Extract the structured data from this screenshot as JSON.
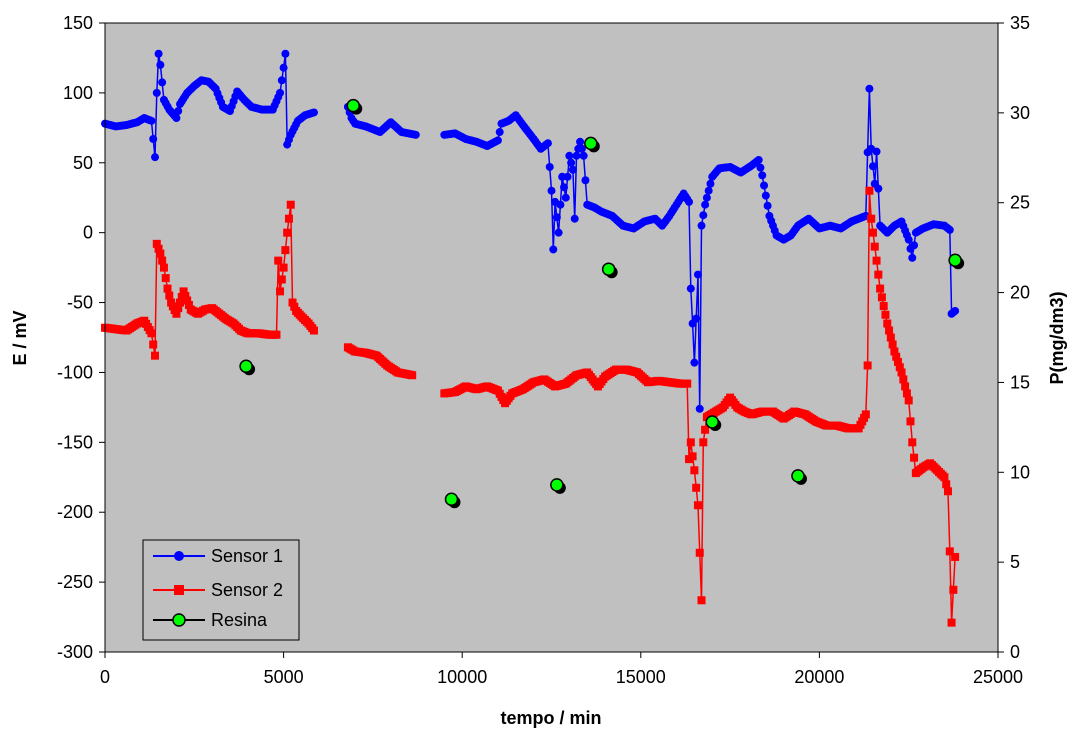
{
  "chart_data": {
    "type": "line",
    "xlabel": "tempo / min",
    "ylabel": "E / mV",
    "y2label": "P(mg/dm3)",
    "xlim": [
      0,
      25000
    ],
    "ylim": [
      -300,
      150
    ],
    "y2lim": [
      0,
      35
    ],
    "xticks": [
      0,
      5000,
      10000,
      15000,
      20000,
      25000
    ],
    "yticks": [
      -300,
      -250,
      -200,
      -150,
      -100,
      -50,
      0,
      50,
      100,
      150
    ],
    "y2ticks": [
      0,
      5,
      10,
      15,
      20,
      25,
      30,
      35
    ],
    "plot_background": "#c0c0c0",
    "grid": false,
    "legend_position": "bottom-left",
    "series": [
      {
        "name": "Sensor 1",
        "axis": "left",
        "color": "#0000ff",
        "marker": "circle",
        "segments": [
          [
            [
              0,
              78
            ],
            [
              300,
              76
            ],
            [
              600,
              77
            ],
            [
              900,
              79
            ],
            [
              1100,
              82
            ],
            [
              1300,
              80
            ],
            [
              1400,
              54
            ],
            [
              1450,
              100
            ],
            [
              1500,
              128
            ],
            [
              1550,
              120
            ],
            [
              1650,
              95
            ],
            [
              1800,
              88
            ],
            [
              2000,
              82
            ],
            [
              2100,
              92
            ],
            [
              2300,
              100
            ],
            [
              2500,
              105
            ],
            [
              2700,
              109
            ],
            [
              2900,
              108
            ],
            [
              3100,
              103
            ],
            [
              3300,
              90
            ],
            [
              3500,
              87
            ],
            [
              3700,
              101
            ],
            [
              3900,
              95
            ],
            [
              4100,
              90
            ],
            [
              4400,
              88
            ],
            [
              4700,
              88
            ],
            [
              4900,
              100
            ],
            [
              5000,
              118
            ],
            [
              5050,
              128
            ],
            [
              5100,
              63
            ],
            [
              5200,
              70
            ],
            [
              5400,
              80
            ],
            [
              5600,
              84
            ],
            [
              5850,
              86
            ]
          ],
          [
            [
              6800,
              90
            ],
            [
              6900,
              82
            ],
            [
              7000,
              78
            ],
            [
              7300,
              76
            ],
            [
              7700,
              72
            ],
            [
              8000,
              79
            ],
            [
              8300,
              72
            ],
            [
              8700,
              70
            ]
          ],
          [
            [
              9500,
              70
            ],
            [
              9800,
              71
            ],
            [
              10100,
              67
            ],
            [
              10400,
              65
            ],
            [
              10700,
              62
            ],
            [
              11000,
              66
            ],
            [
              11100,
              78
            ],
            [
              11300,
              80
            ],
            [
              11500,
              84
            ],
            [
              11700,
              77
            ],
            [
              12000,
              67
            ],
            [
              12200,
              60
            ],
            [
              12400,
              64
            ],
            [
              12500,
              30
            ],
            [
              12550,
              -12
            ],
            [
              12600,
              22
            ],
            [
              12700,
              0
            ],
            [
              12800,
              40
            ],
            [
              12900,
              25
            ],
            [
              13000,
              55
            ],
            [
              13100,
              45
            ],
            [
              13150,
              10
            ],
            [
              13200,
              55
            ],
            [
              13300,
              65
            ],
            [
              13400,
              55
            ],
            [
              13500,
              20
            ],
            [
              13700,
              18
            ],
            [
              13900,
              15
            ],
            [
              14200,
              12
            ],
            [
              14500,
              5
            ],
            [
              14800,
              3
            ],
            [
              15100,
              8
            ],
            [
              15400,
              10
            ],
            [
              15600,
              5
            ],
            [
              15800,
              12
            ],
            [
              16000,
              20
            ],
            [
              16200,
              28
            ],
            [
              16350,
              22
            ],
            [
              16400,
              -40
            ],
            [
              16450,
              -65
            ],
            [
              16500,
              -93
            ],
            [
              16600,
              -30
            ],
            [
              16650,
              -126
            ],
            [
              16700,
              5
            ],
            [
              16800,
              20
            ],
            [
              17000,
              40
            ],
            [
              17200,
              46
            ],
            [
              17500,
              47
            ],
            [
              17800,
              43
            ],
            [
              18100,
              48
            ],
            [
              18300,
              52
            ],
            [
              18400,
              41
            ],
            [
              18600,
              12
            ],
            [
              18800,
              -2
            ],
            [
              19000,
              -5
            ],
            [
              19200,
              -2
            ],
            [
              19400,
              5
            ],
            [
              19700,
              10
            ],
            [
              20000,
              3
            ],
            [
              20300,
              5
            ],
            [
              20600,
              3
            ],
            [
              20900,
              8
            ],
            [
              21100,
              10
            ],
            [
              21300,
              12
            ],
            [
              21400,
              103
            ],
            [
              21450,
              60
            ],
            [
              21550,
              35
            ],
            [
              21600,
              58
            ],
            [
              21700,
              5
            ],
            [
              21900,
              0
            ],
            [
              22100,
              5
            ],
            [
              22300,
              8
            ],
            [
              22500,
              -5
            ],
            [
              22600,
              -18
            ],
            [
              22700,
              0
            ],
            [
              22900,
              3
            ],
            [
              23200,
              6
            ],
            [
              23500,
              5
            ],
            [
              23650,
              2
            ],
            [
              23700,
              -58
            ],
            [
              23800,
              -56
            ]
          ]
        ]
      },
      {
        "name": "Sensor 2",
        "axis": "left",
        "color": "#ff0000",
        "marker": "square",
        "segments": [
          [
            [
              0,
              -68
            ],
            [
              300,
              -69
            ],
            [
              600,
              -70
            ],
            [
              900,
              -65
            ],
            [
              1100,
              -63
            ],
            [
              1300,
              -72
            ],
            [
              1400,
              -88
            ],
            [
              1450,
              -8
            ],
            [
              1550,
              -15
            ],
            [
              1650,
              -25
            ],
            [
              1750,
              -40
            ],
            [
              1850,
              -50
            ],
            [
              2000,
              -58
            ],
            [
              2200,
              -42
            ],
            [
              2400,
              -55
            ],
            [
              2600,
              -58
            ],
            [
              2800,
              -55
            ],
            [
              3000,
              -54
            ],
            [
              3200,
              -58
            ],
            [
              3400,
              -62
            ],
            [
              3600,
              -65
            ],
            [
              3800,
              -70
            ],
            [
              4000,
              -72
            ],
            [
              4300,
              -72
            ],
            [
              4600,
              -73
            ],
            [
              4800,
              -73
            ],
            [
              4850,
              -20
            ],
            [
              4900,
              -42
            ],
            [
              5000,
              -25
            ],
            [
              5100,
              0
            ],
            [
              5200,
              20
            ],
            [
              5250,
              -50
            ],
            [
              5350,
              -56
            ],
            [
              5500,
              -60
            ],
            [
              5700,
              -65
            ],
            [
              5850,
              -70
            ]
          ],
          [
            [
              6800,
              -82
            ],
            [
              7000,
              -85
            ],
            [
              7300,
              -86
            ],
            [
              7600,
              -88
            ],
            [
              7900,
              -95
            ],
            [
              8200,
              -100
            ],
            [
              8600,
              -102
            ]
          ],
          [
            [
              9500,
              -115
            ],
            [
              9800,
              -114
            ],
            [
              10100,
              -110
            ],
            [
              10400,
              -112
            ],
            [
              10700,
              -110
            ],
            [
              11000,
              -113
            ],
            [
              11200,
              -122
            ],
            [
              11400,
              -115
            ],
            [
              11700,
              -112
            ],
            [
              12000,
              -107
            ],
            [
              12300,
              -105
            ],
            [
              12600,
              -110
            ],
            [
              12900,
              -108
            ],
            [
              13200,
              -102
            ],
            [
              13500,
              -100
            ],
            [
              13800,
              -110
            ],
            [
              14000,
              -103
            ],
            [
              14300,
              -98
            ],
            [
              14600,
              -98
            ],
            [
              14900,
              -100
            ],
            [
              15200,
              -107
            ],
            [
              15500,
              -106
            ],
            [
              15800,
              -107
            ],
            [
              16100,
              -108
            ],
            [
              16300,
              -108
            ],
            [
              16350,
              -162
            ],
            [
              16400,
              -150
            ],
            [
              16500,
              -170
            ],
            [
              16600,
              -195
            ],
            [
              16700,
              -263
            ],
            [
              16750,
              -150
            ],
            [
              16850,
              -132
            ],
            [
              17100,
              -128
            ],
            [
              17300,
              -125
            ],
            [
              17500,
              -118
            ],
            [
              17700,
              -125
            ],
            [
              17900,
              -128
            ],
            [
              18100,
              -130
            ],
            [
              18400,
              -128
            ],
            [
              18700,
              -128
            ],
            [
              19000,
              -133
            ],
            [
              19300,
              -128
            ],
            [
              19600,
              -130
            ],
            [
              19900,
              -135
            ],
            [
              20200,
              -138
            ],
            [
              20500,
              -138
            ],
            [
              20800,
              -140
            ],
            [
              21100,
              -140
            ],
            [
              21300,
              -130
            ],
            [
              21350,
              -95
            ],
            [
              21400,
              30
            ],
            [
              21450,
              10
            ],
            [
              21600,
              -20
            ],
            [
              21700,
              -40
            ],
            [
              21900,
              -65
            ],
            [
              22100,
              -85
            ],
            [
              22300,
              -100
            ],
            [
              22500,
              -120
            ],
            [
              22600,
              -150
            ],
            [
              22700,
              -172
            ],
            [
              22900,
              -168
            ],
            [
              23100,
              -165
            ],
            [
              23300,
              -170
            ],
            [
              23500,
              -175
            ],
            [
              23600,
              -185
            ],
            [
              23650,
              -228
            ],
            [
              23700,
              -279
            ],
            [
              23800,
              -232
            ]
          ]
        ]
      },
      {
        "name": "Resina",
        "axis": "right",
        "color": "#00ff00",
        "marker": "circle",
        "points": [
          [
            3950,
            15.9
          ],
          [
            6950,
            30.4
          ],
          [
            9700,
            8.5
          ],
          [
            12650,
            9.3
          ],
          [
            13600,
            28.3
          ],
          [
            14100,
            21.3
          ],
          [
            17000,
            12.8
          ],
          [
            19400,
            9.8
          ],
          [
            23800,
            21.8
          ]
        ]
      }
    ]
  }
}
